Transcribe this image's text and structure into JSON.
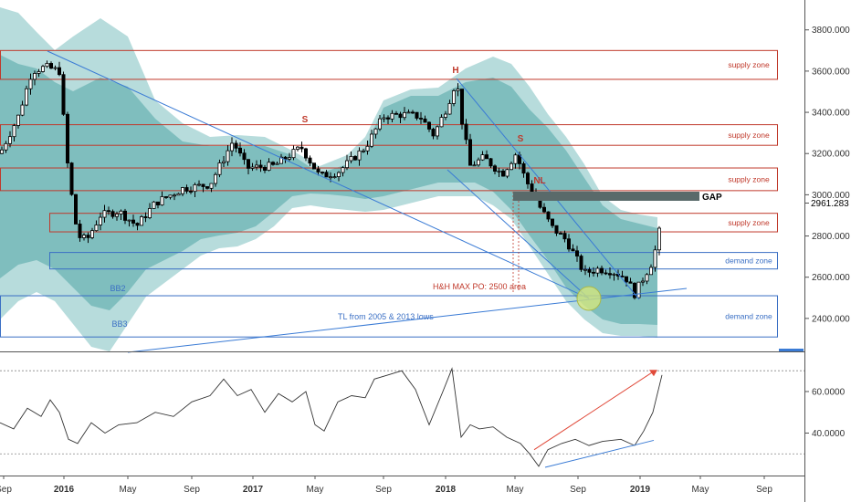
{
  "chart_data": {
    "type": "candlestick",
    "price_axis": {
      "ticks": [
        "3800.000",
        "3600.000",
        "3400.000",
        "3200.000",
        "3000.000",
        "2800.000",
        "2600.000",
        "2400.000"
      ],
      "tick_values": [
        3800,
        3600,
        3400,
        3200,
        3000,
        2800,
        2600,
        2400
      ],
      "range": [
        2240,
        3945
      ],
      "last_price": "2961.283"
    },
    "time_axis": {
      "labels": [
        "Sep",
        "2016",
        "May",
        "Sep",
        "2017",
        "May",
        "Sep",
        "2018",
        "May",
        "Sep",
        "2019",
        "May",
        "Sep"
      ],
      "bold": [
        false,
        true,
        false,
        false,
        true,
        false,
        false,
        true,
        false,
        false,
        true,
        false,
        false
      ]
    },
    "rsi_axis": {
      "ticks": [
        "60.0000",
        "40.0000"
      ],
      "tick_values": [
        60,
        40
      ],
      "range": [
        20,
        78
      ],
      "guide_levels": [
        70,
        30
      ]
    },
    "zones": [
      {
        "label": "supply zone",
        "low": 3560,
        "high": 3700,
        "kind": "supply"
      },
      {
        "label": "supply zone",
        "low": 3240,
        "high": 3340,
        "kind": "supply"
      },
      {
        "label": "supply zone",
        "low": 3020,
        "high": 3130,
        "kind": "supply"
      },
      {
        "label": "supply zone",
        "low": 2820,
        "high": 2910,
        "kind": "supply"
      },
      {
        "label": "demand zone",
        "low": 2640,
        "high": 2720,
        "kind": "demand"
      },
      {
        "label": "demand zone",
        "low": 2310,
        "high": 2510,
        "kind": "demand"
      }
    ],
    "annotations": {
      "gap": "GAP",
      "head": "H",
      "left_shoulder": "S",
      "right_shoulder": "S",
      "neckline": "NL",
      "bb2": "BB2",
      "bb3": "BB3",
      "po_label": "H&H MAX PO: 2500 area",
      "trendline_label": "TL from 2005 & 2013 lows"
    },
    "colors": {
      "bull": "#ffffff",
      "bear": "#000000",
      "band_outer": "#b7dcdc",
      "band_inner": "#7fbebe",
      "supply": "#c0392b",
      "demand": "#3a6fc4",
      "trendline": "#3a7bd5",
      "rsi_arrow": "#e04a3a",
      "highlight": "#d8e87a"
    }
  }
}
